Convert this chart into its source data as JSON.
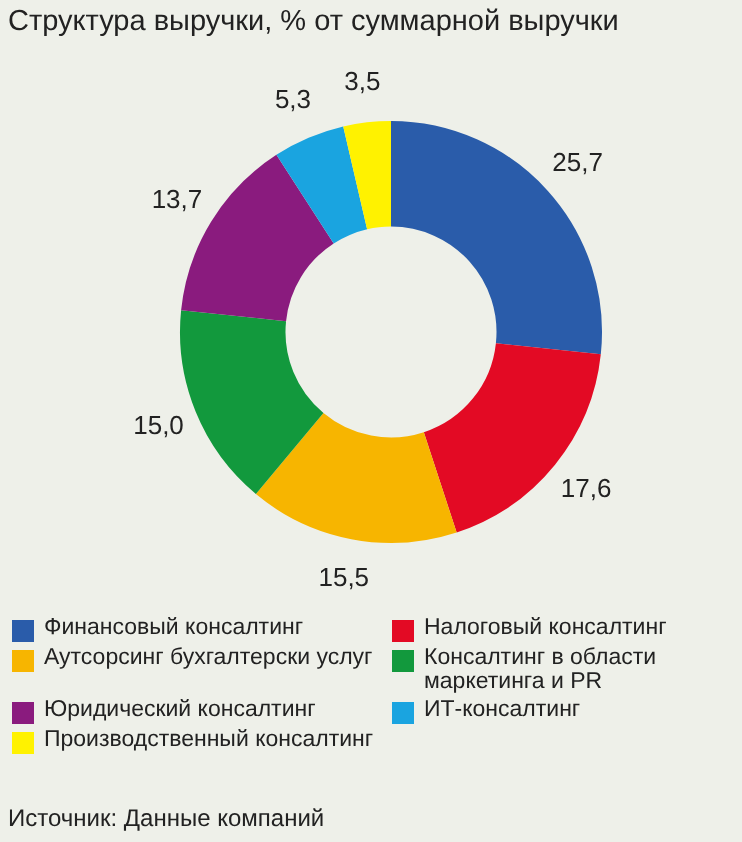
{
  "chart_data": {
    "type": "donut",
    "title": "Структура выручки, % от суммарной выручки",
    "categories": [
      "Финансовый консалтинг",
      "Налоговый консалтинг",
      "Аутсорсинг бухгалтерски услуг",
      "Консалтинг в области маркетинга и PR",
      "Юридический консалтинг",
      "ИТ-консалтинг",
      "Производственный консалтинг"
    ],
    "values": [
      25.7,
      17.6,
      15.5,
      15.0,
      13.7,
      5.3,
      3.5
    ],
    "value_labels": [
      "25,7",
      "17,6",
      "15,5",
      "15,0",
      "13,7",
      "5,3",
      "3,5"
    ],
    "colors": [
      "#2a5caa",
      "#e30a24",
      "#f7b500",
      "#12993d",
      "#8a1b7e",
      "#1aa4e0",
      "#fff200"
    ],
    "legend": "bottom",
    "annotations": [
      "Источник: Данные компаний"
    ]
  }
}
